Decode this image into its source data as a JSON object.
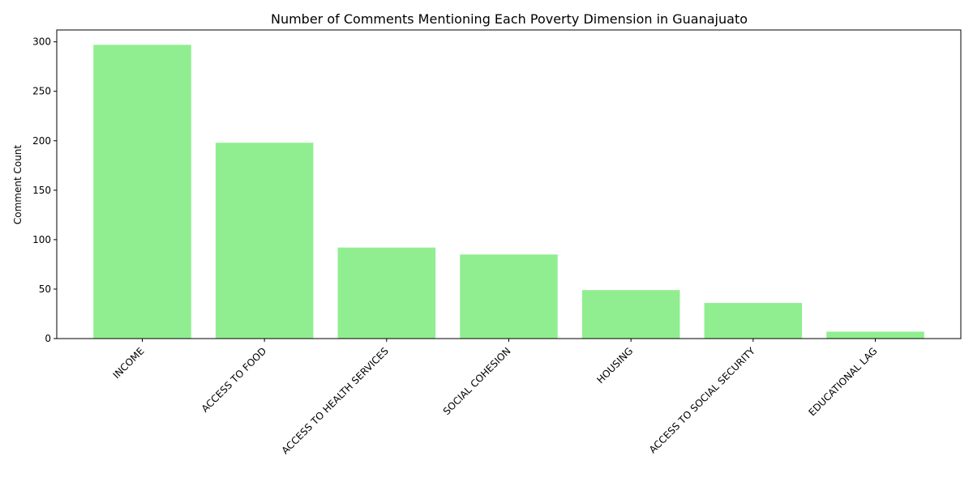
{
  "chart_data": {
    "type": "bar",
    "title": "Number of Comments Mentioning Each Poverty Dimension in Guanajuato",
    "xlabel": "",
    "ylabel": "Comment Count",
    "categories": [
      "INCOME",
      "ACCESS TO FOOD",
      "ACCESS TO HEALTH SERVICES",
      "SOCIAL COHESION",
      "HOUSING",
      "ACCESS TO SOCIAL SECURITY",
      "EDUCATIONAL LAG"
    ],
    "values": [
      297,
      198,
      92,
      85,
      49,
      36,
      7
    ],
    "ylim": [
      0,
      312
    ],
    "yticks": [
      0,
      50,
      100,
      150,
      200,
      250,
      300
    ],
    "bar_color": "#90ee90",
    "grid": false,
    "legend": "none"
  }
}
